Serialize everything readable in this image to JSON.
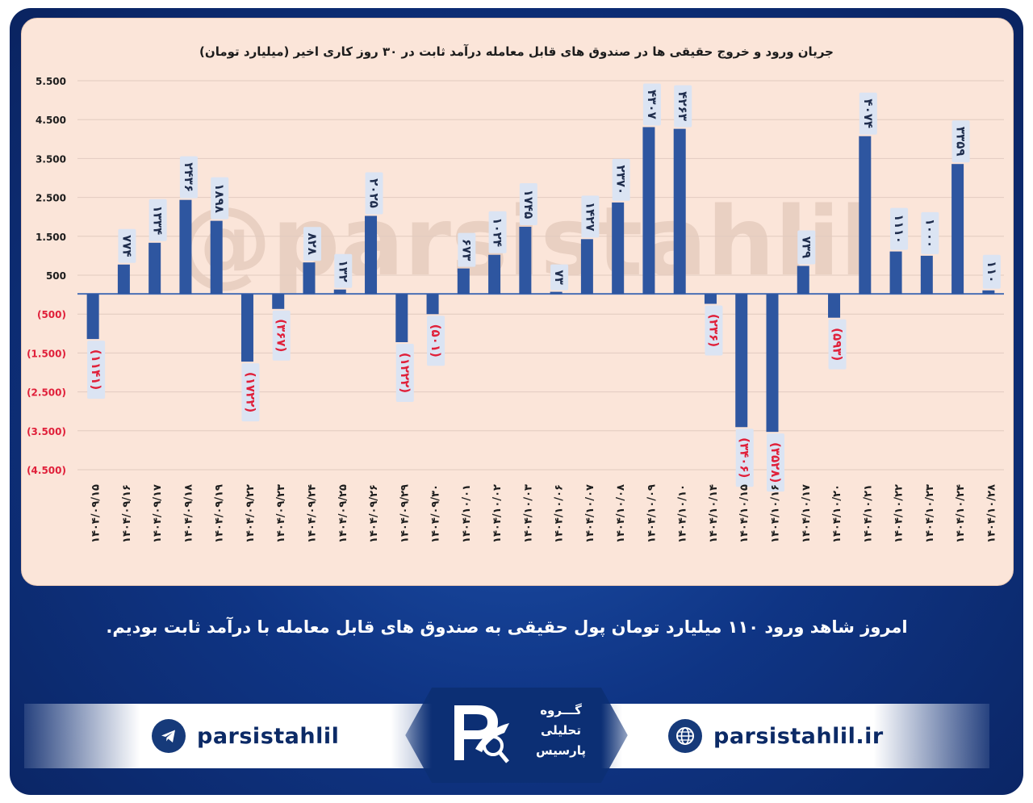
{
  "chart_data": {
    "type": "bar",
    "title": "جریان ورود و خروج حقیقی ها در صندوق های قابل معامله درآمد ثابت در ۳۰ روز کاری اخیر (میلیارد تومان)",
    "categories": [
      "۱۴۰۴/۰۹/۱۵",
      "۱۴۰۴/۰۹/۱۶",
      "۱۴۰۴/۰۹/۱۷",
      "۱۴۰۴/۰۹/۱۸",
      "۱۴۰۴/۰۹/۱۹",
      "۱۴۰۴/۰۹/۲۲",
      "۱۴۰۴/۰۹/۲۳",
      "۱۴۰۴/۰۹/۲۴",
      "۱۴۰۴/۰۹/۲۵",
      "۱۴۰۴/۰۹/۲۶",
      "۱۴۰۴/۰۹/۲۹",
      "۱۴۰۴/۰۹/۳۰",
      "۱۴۰۴/۱۰/۰۱",
      "۱۴۰۴/۱۰/۰۲",
      "۱۴۰۴/۱۰/۰۳",
      "۱۴۰۴/۱۰/۰۶",
      "۱۴۰۴/۱۰/۰۷",
      "۱۴۰۴/۱۰/۰۸",
      "۱۴۰۴/۱۰/۰۹",
      "۱۴۰۴/۱۰/۱۰",
      "۱۴۰۴/۱۰/۱۴",
      "۱۴۰۴/۱۰/۱۵",
      "۱۴۰۴/۱۰/۱۶",
      "۱۴۰۴/۱۰/۱۷",
      "۱۴۰۴/۱۰/۲۰",
      "۱۴۰۴/۱۰/۲۱",
      "۱۴۰۴/۱۰/۲۲",
      "۱۴۰۴/۱۰/۲۳",
      "۱۴۰۴/۱۰/۲۴",
      "۱۴۰۴/۱۰/۲۸"
    ],
    "values": [
      -1141,
      774,
      1334,
      2436,
      1898,
      -1722,
      -367,
      828,
      132,
      2025,
      -1222,
      -501,
      673,
      1024,
      1745,
      73,
      1427,
      2370,
      4307,
      4263,
      -236,
      -3406,
      -3528,
      739,
      -593,
      4074,
      1110,
      1000,
      3359,
      110
    ],
    "value_labels": [
      "(۱۱۴۱)",
      "۷۷۴",
      "۱۳۳۴",
      "۲۴۳۶",
      "۱۸۹۸",
      "(۱۷۲۲)",
      "(۳۶۷)",
      "۸۲۸",
      "۱۳۲",
      "۲۰۲۵",
      "(۱۲۲۲)",
      "(۵۰۱)",
      "۶۷۳",
      "۱۰۲۴",
      "۱۷۴۵",
      "۷۳",
      "۱۴۲۷",
      "۲۳۷۰",
      "۴۳۰۷",
      "۴۲۶۳",
      "(۲۳۶)",
      "(۳۴۰۶)",
      "(۳۵۲۸)",
      "۷۳۹",
      "(۵۹۳)",
      "۴۰۷۴",
      "۱۱۱۰",
      "۱۰۰۰",
      "۳۳۵۹",
      "۱۱۰"
    ],
    "yticks": [
      5500,
      4500,
      3500,
      2500,
      1500,
      500,
      -500,
      -1500,
      -2500,
      -3500,
      -4500
    ],
    "ytick_labels": [
      "5.500",
      "4.500",
      "3.500",
      "2.500",
      "1.500",
      "500",
      "(500)",
      "(1.500)",
      "(2.500)",
      "(3.500)",
      "(4.500)"
    ],
    "ylim": [
      -4500,
      5500
    ],
    "grid": true,
    "colors": {
      "bar": "#2e56a0",
      "negative_label": "#e0203a",
      "positive_label": "#1f2d4d",
      "label_box": "#dbe4f3",
      "grid": "#e2cbc0"
    }
  },
  "watermark": "@parsistahlil",
  "caption": "امروز شاهد ورود ۱۱۰ میلیارد تومان پول حقیقی به صندوق های قابل معامله با درآمد ثابت بودیم.",
  "footer": {
    "telegram_handle": "parsistahlil",
    "website": "parsistahlil.ir",
    "logo_lines": [
      "گـــروه",
      "تحلیلی",
      "پارسیس"
    ]
  }
}
